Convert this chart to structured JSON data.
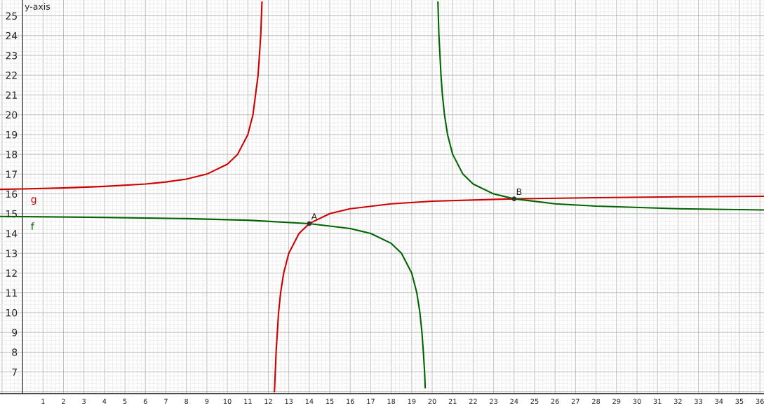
{
  "chart_data": {
    "type": "line",
    "ylabel": "y-axis",
    "xlim": [
      -1.1,
      36.2
    ],
    "ylim": [
      5.9,
      25.8
    ],
    "xticks": [
      1,
      2,
      3,
      4,
      5,
      6,
      7,
      8,
      9,
      10,
      11,
      12,
      13,
      14,
      15,
      16,
      17,
      18,
      19,
      20,
      21,
      22,
      23,
      24,
      25,
      26,
      27,
      28,
      29,
      30,
      31,
      32,
      33,
      34,
      35,
      36
    ],
    "yticks": [
      7,
      8,
      9,
      10,
      11,
      12,
      13,
      14,
      15,
      16,
      17,
      18,
      19,
      20,
      21,
      22,
      23,
      24,
      25
    ],
    "grid": true,
    "series": [
      {
        "name": "g",
        "color": "#cc0000",
        "x": [
          -1.1,
          0,
          2,
          4,
          6,
          7,
          8,
          9,
          10,
          10.5,
          11,
          11.25,
          11.5,
          11.63,
          11.69,
          12,
          12.3,
          12.38,
          12.5,
          12.6,
          12.75,
          13,
          13.5,
          14,
          15,
          16,
          18,
          20,
          24,
          28,
          32,
          36.2
        ],
        "values": [
          16.23,
          16.25,
          16.3,
          16.38,
          16.5,
          16.6,
          16.75,
          17,
          17.5,
          18,
          19,
          20,
          22,
          24,
          25.7,
          null,
          6,
          8,
          10,
          11,
          12,
          13,
          14,
          14.5,
          15,
          15.25,
          15.5,
          15.63,
          15.75,
          15.81,
          15.85,
          15.88
        ]
      },
      {
        "name": "f",
        "color": "#006400",
        "x": [
          -1.1,
          0,
          4,
          8,
          11,
          14,
          16,
          17,
          18,
          18.5,
          19,
          19.25,
          19.4,
          19.5,
          19.57,
          19.63,
          19.66,
          20,
          20.28,
          20.33,
          20.38,
          20.43,
          20.5,
          20.6,
          20.75,
          21,
          21.5,
          22,
          23,
          24,
          26,
          28,
          32,
          36.2
        ],
        "values": [
          14.86,
          14.85,
          14.81,
          14.75,
          14.67,
          14.5,
          14.25,
          14,
          13.5,
          13,
          12,
          11,
          10,
          9,
          8,
          7,
          6.2,
          null,
          25.7,
          24,
          23,
          22,
          21,
          20,
          19,
          18,
          17,
          16.5,
          16,
          15.75,
          15.5,
          15.38,
          15.25,
          15.19
        ]
      },
      {
        "type": "scatter",
        "color": "#333333",
        "marker": "circle",
        "x": [
          14,
          24
        ],
        "values": [
          14.5,
          15.75
        ]
      }
    ],
    "annotations": [
      {
        "text": "A",
        "x": 14,
        "y": 14.5
      },
      {
        "text": "B",
        "x": 24,
        "y": 15.75
      }
    ]
  }
}
